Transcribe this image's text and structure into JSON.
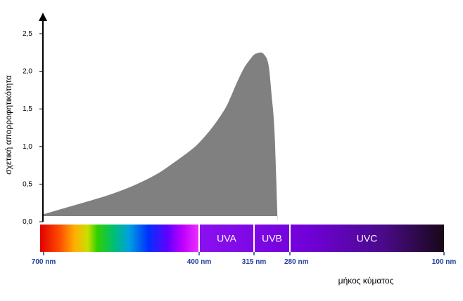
{
  "chart_data": {
    "type": "area",
    "title": "",
    "ylabel": "σχετική απορροφητικότητα",
    "xlabel": "μήκος κύματος",
    "ylim": [
      0,
      2.5
    ],
    "y_ticks": [
      "0,0",
      "0,5",
      "1,0",
      "1,5",
      "2,0",
      "2,5"
    ],
    "wavelength_ticks": [
      {
        "label": "700 nm",
        "value": 700
      },
      {
        "label": "400 nm",
        "value": 400
      },
      {
        "label": "315 nm",
        "value": 315
      },
      {
        "label": "280 nm",
        "value": 280
      },
      {
        "label": "100 nm",
        "value": 100
      }
    ],
    "bands": [
      {
        "name": "UVA",
        "from": 400,
        "to": 315
      },
      {
        "name": "UVB",
        "from": 315,
        "to": 280
      },
      {
        "name": "UVC",
        "from": 280,
        "to": 100
      }
    ],
    "series": [
      {
        "x": [
          700,
          680,
          640,
          600,
          560,
          520,
          480,
          450,
          420,
          400,
          380,
          360,
          350,
          340,
          330,
          320,
          315,
          312,
          308,
          305,
          302,
          300,
          298,
          295,
          292
        ],
        "y": [
          0.1,
          0.14,
          0.22,
          0.3,
          0.39,
          0.5,
          0.64,
          0.78,
          0.93,
          1.05,
          1.25,
          1.5,
          1.68,
          1.88,
          2.05,
          2.17,
          2.22,
          2.24,
          2.25,
          2.22,
          2.15,
          2.0,
          1.7,
          1.2,
          0.0
        ]
      }
    ],
    "colors": {
      "area": "#808080",
      "axis": "#000000",
      "wavelength_label": "#1f3d9c",
      "uv_base": "#7a00e6",
      "uvc_end": "#1a0a2a"
    }
  }
}
